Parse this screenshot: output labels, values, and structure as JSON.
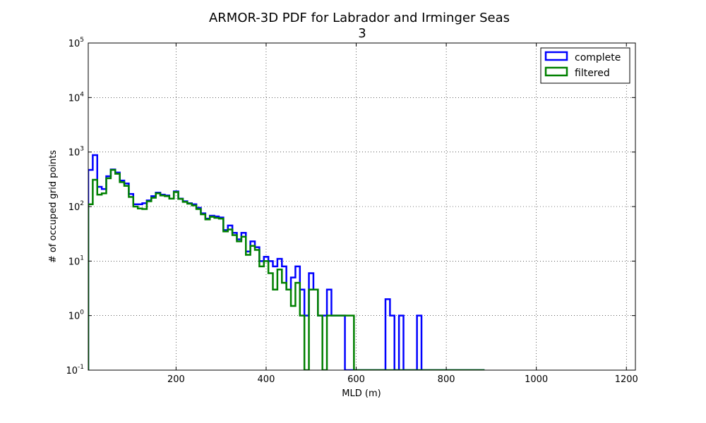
{
  "chart_data": {
    "type": "histogram-step",
    "title": "ARMOR-3D PDF for Labrador and Irminger Seas",
    "subtitle": "3",
    "xlabel": "MLD (m)",
    "ylabel": "# of occuped grid points",
    "xlim": [
      5,
      1220
    ],
    "ylim": [
      0.1,
      100000
    ],
    "yscale": "log",
    "xticks": [
      200,
      400,
      600,
      800,
      1000,
      1200
    ],
    "xtick_labels": [
      "200",
      "400",
      "600",
      "800",
      "1000",
      "1200"
    ],
    "yticks": [
      0.1,
      1,
      10,
      100,
      1000,
      10000,
      100000
    ],
    "ytick_bases": [
      "10",
      "10",
      "10",
      "10",
      "10",
      "10",
      "10"
    ],
    "ytick_exponents": [
      "-1",
      "0",
      "1",
      "2",
      "3",
      "4",
      "5"
    ],
    "grid": true,
    "legend_position": "top-right",
    "bin_edges": [
      5,
      15,
      25,
      35,
      45,
      55,
      65,
      75,
      85,
      95,
      105,
      115,
      125,
      135,
      145,
      155,
      165,
      175,
      185,
      195,
      205,
      215,
      225,
      235,
      245,
      255,
      265,
      275,
      285,
      295,
      305,
      315,
      325,
      335,
      345,
      355,
      365,
      375,
      385,
      395,
      405,
      415,
      425,
      435,
      445,
      455,
      465,
      475,
      485,
      495,
      505,
      515,
      525,
      535,
      545,
      555,
      565,
      575,
      585,
      595,
      605,
      615,
      625,
      635,
      645,
      655,
      665,
      675,
      685,
      695,
      705,
      715,
      725,
      735,
      745,
      755,
      765,
      775,
      785,
      795,
      805,
      815,
      825,
      835,
      845,
      855,
      865,
      875,
      885
    ],
    "series": [
      {
        "name": "complete",
        "color": "#0000ff",
        "values": [
          470,
          880,
          230,
          210,
          360,
          480,
          420,
          300,
          265,
          170,
          110,
          110,
          115,
          130,
          155,
          180,
          165,
          160,
          140,
          190,
          140,
          125,
          115,
          110,
          95,
          75,
          60,
          68,
          66,
          63,
          37,
          45,
          33,
          25,
          33,
          15,
          23,
          18,
          10,
          12,
          10,
          8,
          11,
          8,
          3,
          5,
          8,
          3,
          1,
          6,
          3,
          1,
          1,
          3,
          1,
          1,
          1,
          0,
          0,
          0,
          0,
          0,
          0,
          0,
          0,
          0,
          2,
          1,
          0,
          1,
          0,
          0,
          0,
          1,
          0,
          0,
          0,
          0,
          0,
          0,
          0,
          0,
          0,
          0,
          0,
          0,
          0,
          0
        ]
      },
      {
        "name": "filtered",
        "color": "#008000",
        "values": [
          110,
          310,
          165,
          175,
          330,
          470,
          400,
          280,
          240,
          150,
          100,
          92,
          90,
          125,
          145,
          175,
          160,
          155,
          140,
          185,
          138,
          122,
          113,
          105,
          90,
          72,
          58,
          65,
          62,
          60,
          35,
          38,
          30,
          23,
          28,
          13,
          19,
          16,
          8,
          10,
          6,
          3,
          7,
          4,
          3,
          1.5,
          4,
          1,
          0,
          3,
          3,
          1,
          0,
          1,
          1,
          1,
          1,
          1,
          1,
          0,
          0,
          0,
          0,
          0,
          0,
          0,
          0,
          0,
          0,
          0,
          0,
          0,
          0,
          0,
          0,
          0,
          0,
          0,
          0,
          0,
          0,
          0,
          0,
          0,
          0,
          0,
          0,
          0
        ]
      }
    ]
  }
}
